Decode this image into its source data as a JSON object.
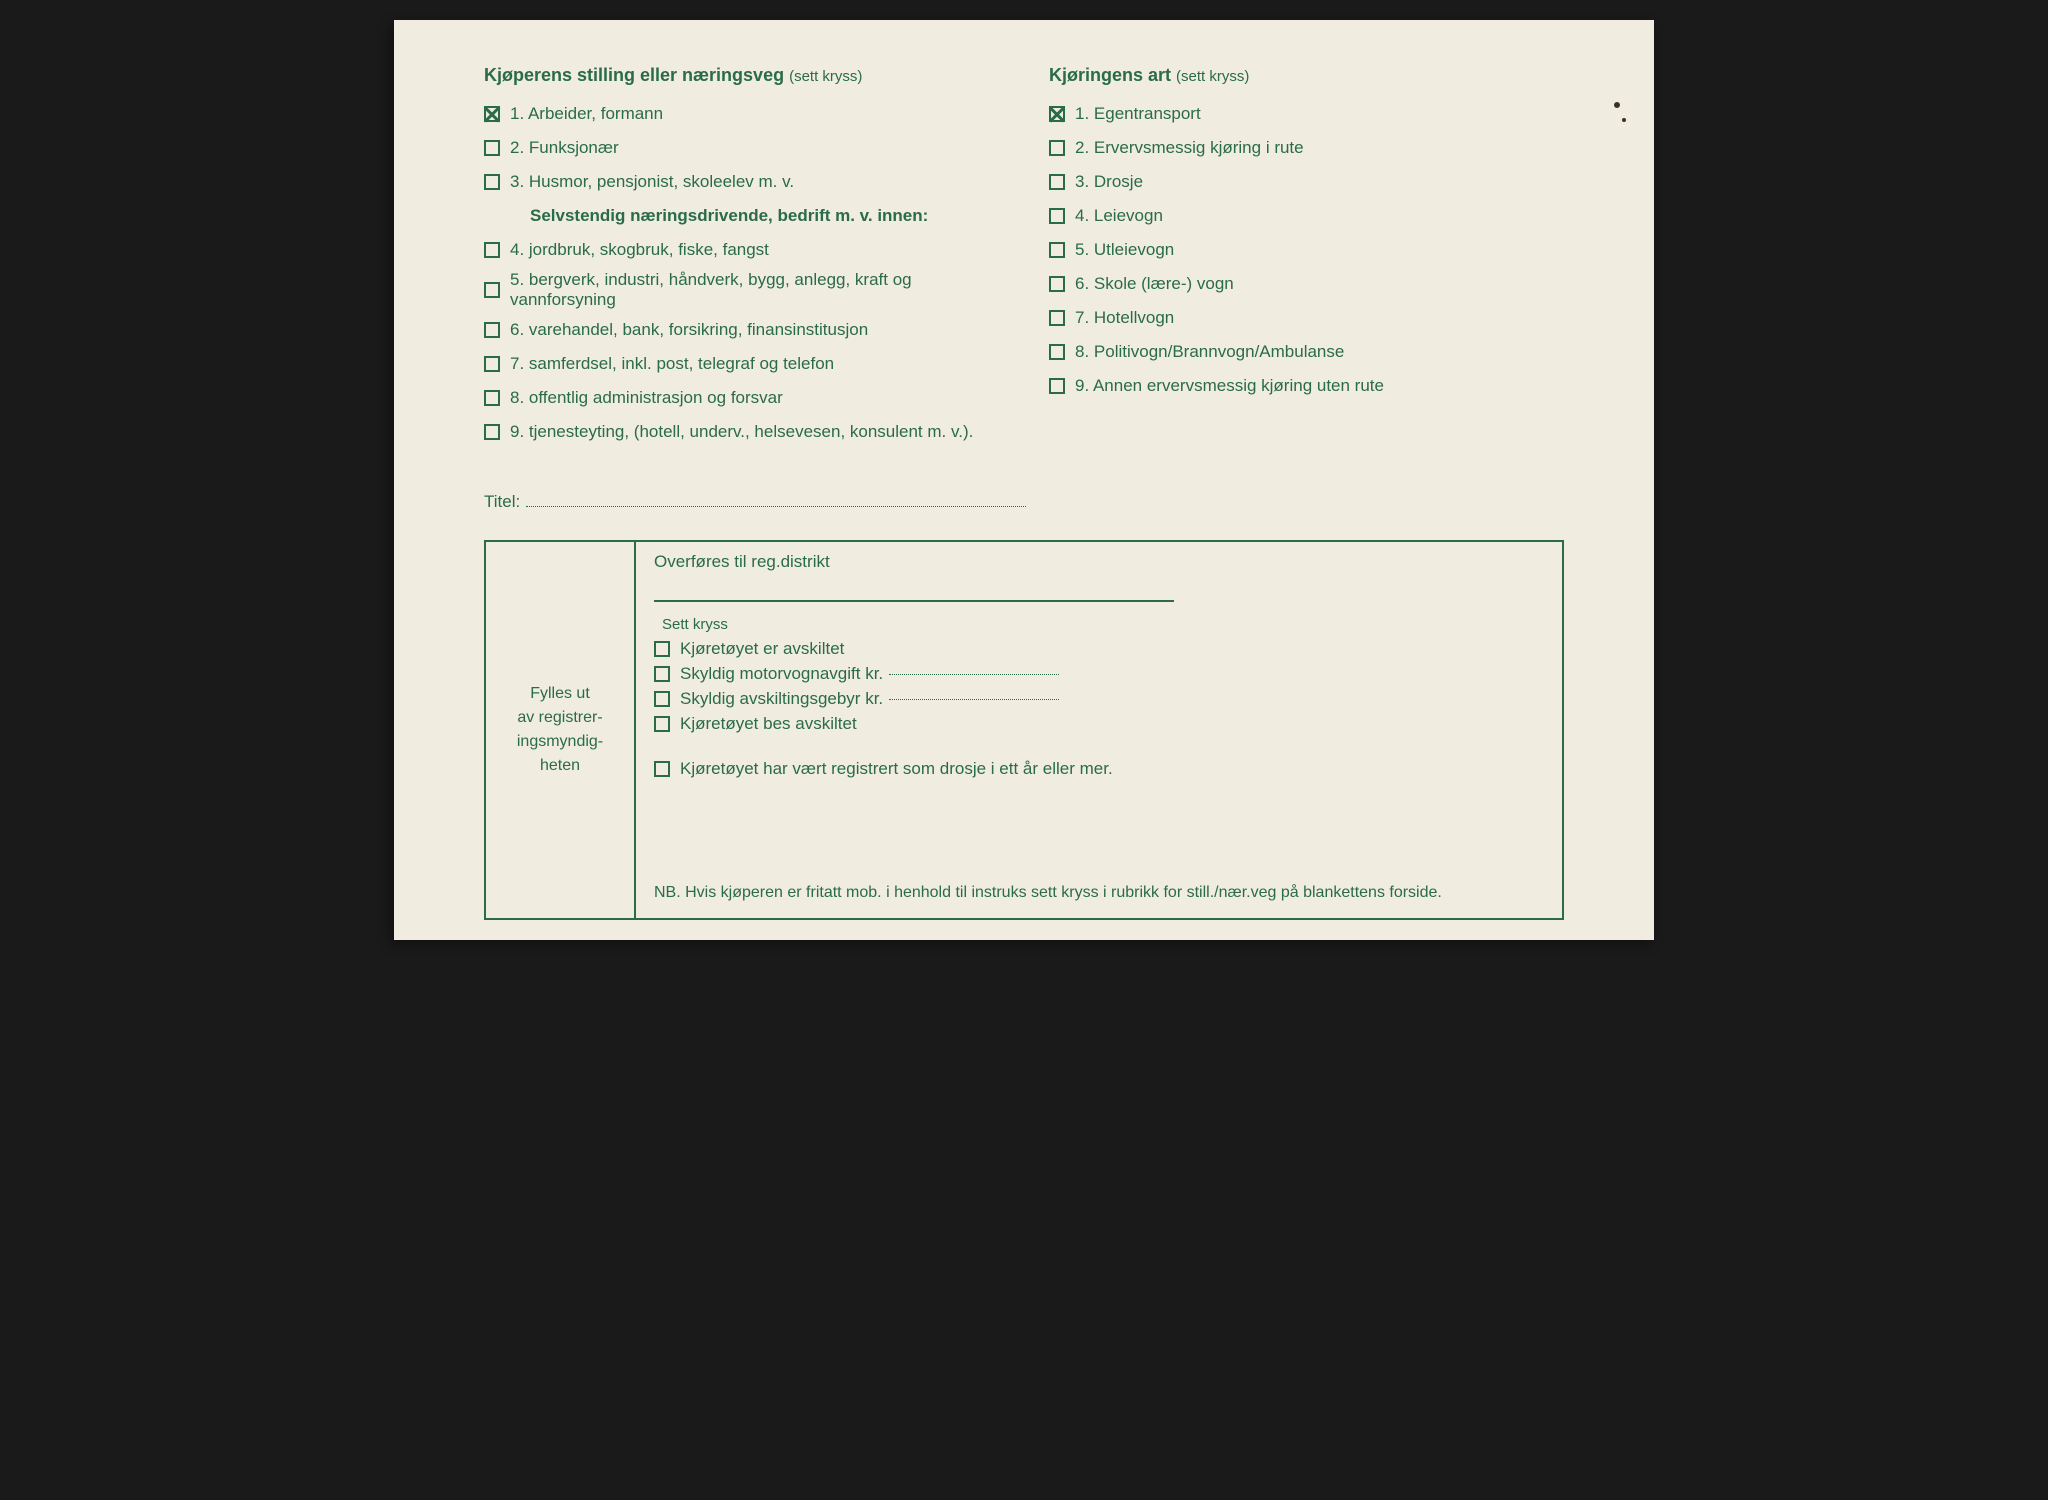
{
  "colors": {
    "ink": "#2a6b4a",
    "paper": "#f0ece0"
  },
  "typography": {
    "heading_fontsize": 18,
    "body_fontsize": 17,
    "hint_fontsize": 15
  },
  "left_section": {
    "heading": "Kjøperens stilling eller næringsveg",
    "hint": "(sett kryss)",
    "items_a": [
      {
        "num": "1.",
        "label": "Arbeider, formann",
        "checked": true
      },
      {
        "num": "2.",
        "label": "Funksjonær",
        "checked": false
      },
      {
        "num": "3.",
        "label": "Husmor, pensjonist, skoleelev m. v.",
        "checked": false
      }
    ],
    "subheading": "Selvstendig næringsdrivende, bedrift m. v. innen:",
    "items_b": [
      {
        "num": "4.",
        "label": "jordbruk, skogbruk, fiske, fangst",
        "checked": false
      },
      {
        "num": "5.",
        "label": "bergverk, industri, håndverk, bygg, anlegg, kraft og vannforsyning",
        "checked": false
      },
      {
        "num": "6.",
        "label": "varehandel, bank, forsikring, finansinstitusjon",
        "checked": false
      },
      {
        "num": "7.",
        "label": "samferdsel, inkl. post, telegraf og telefon",
        "checked": false
      },
      {
        "num": "8.",
        "label": "offentlig administrasjon og forsvar",
        "checked": false
      },
      {
        "num": "9.",
        "label": "tjenesteyting, (hotell, underv., helsevesen, konsulent m. v.).",
        "checked": false
      }
    ]
  },
  "right_section": {
    "heading": "Kjøringens art",
    "hint": "(sett kryss)",
    "items": [
      {
        "num": "1.",
        "label": "Egentransport",
        "checked": true
      },
      {
        "num": "2.",
        "label": "Ervervsmessig kjøring i rute",
        "checked": false
      },
      {
        "num": "3.",
        "label": "Drosje",
        "checked": false
      },
      {
        "num": "4.",
        "label": "Leievogn",
        "checked": false
      },
      {
        "num": "5.",
        "label": "Utleievogn",
        "checked": false
      },
      {
        "num": "6.",
        "label": "Skole (lære-) vogn",
        "checked": false
      },
      {
        "num": "7.",
        "label": "Hotellvogn",
        "checked": false
      },
      {
        "num": "8.",
        "label": "Politivogn/Brannvogn/Ambulanse",
        "checked": false
      },
      {
        "num": "9.",
        "label": "Annen ervervsmessig kjøring uten rute",
        "checked": false
      }
    ]
  },
  "titel_label": "Titel:",
  "admin": {
    "side_label_l1": "Fylles ut",
    "side_label_l2": "av registrer-",
    "side_label_l3": "ingsmyndig-",
    "side_label_l4": "heten",
    "reg_label": "Overføres til reg.distrikt",
    "sett_kryss": "Sett kryss",
    "items": [
      {
        "label": "Kjøretøyet er avskiltet",
        "has_dotted": false
      },
      {
        "label": "Skyldig motorvognavgift kr.",
        "has_dotted": true
      },
      {
        "label": "Skyldig avskiltingsgebyr kr.",
        "has_dotted": true
      },
      {
        "label": "Kjøretøyet bes avskiltet",
        "has_dotted": false
      }
    ],
    "item_lone": "Kjøretøyet har vært registrert som drosje i ett år eller mer.",
    "nb": "NB. Hvis kjøperen er fritatt mob. i henhold til instruks sett kryss i rubrikk for still./nær.veg på blankettens forside."
  }
}
